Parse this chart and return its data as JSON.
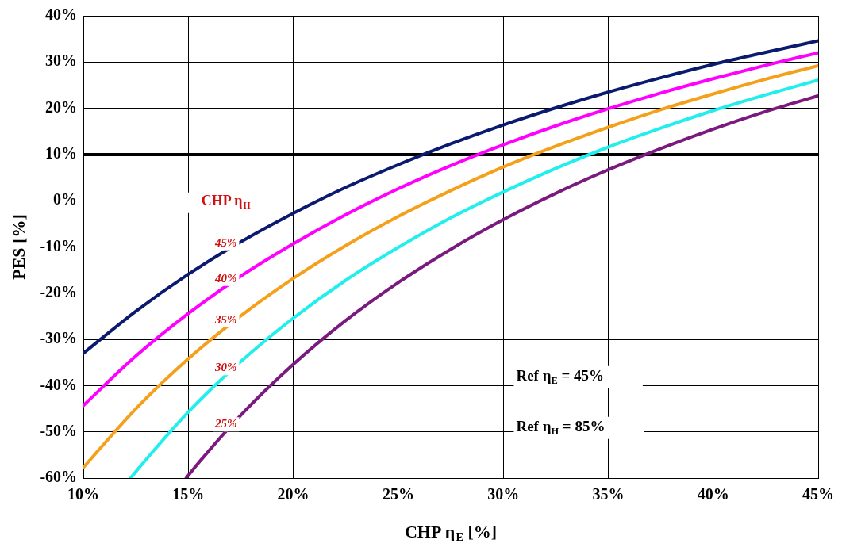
{
  "chart_data": {
    "type": "line",
    "xlabel": "CHP η$_{E}$ [%]",
    "ylabel": "PES [%]",
    "xlim": [
      10,
      45
    ],
    "xticks": [
      {
        "value": 10,
        "label": "10%"
      },
      {
        "value": 15,
        "label": "15%"
      },
      {
        "value": 20,
        "label": "20%"
      },
      {
        "value": 25,
        "label": "25%"
      },
      {
        "value": 30,
        "label": "30%"
      },
      {
        "value": 35,
        "label": "35%"
      },
      {
        "value": 40,
        "label": "40%"
      },
      {
        "value": 45,
        "label": "45%"
      }
    ],
    "ylim": [
      -60,
      40
    ],
    "yticks": [
      {
        "value": -60,
        "label": "-60%"
      },
      {
        "value": -50,
        "label": "-50%"
      },
      {
        "value": -40,
        "label": "-40%"
      },
      {
        "value": -30,
        "label": "-30%"
      },
      {
        "value": -20,
        "label": "-20%"
      },
      {
        "value": -10,
        "label": "-10%"
      },
      {
        "value": 0,
        "label": "0%"
      },
      {
        "value": 10,
        "label": "10%"
      },
      {
        "value": 20,
        "label": "20%"
      },
      {
        "value": 30,
        "label": "30%"
      },
      {
        "value": 40,
        "label": "40%"
      }
    ],
    "grid": true,
    "marker": "none",
    "line_style": "solid",
    "series": [
      {
        "name": "45%",
        "color": "#0a1a6e",
        "x": [
          10,
          12.5,
          15,
          17.5,
          20,
          22.5,
          25,
          27.5,
          30,
          32.5,
          35,
          37.5,
          40,
          42.5,
          45
        ],
        "values": [
          -33.0,
          -23.9,
          -15.9,
          -8.9,
          -2.7,
          2.9,
          7.8,
          12.3,
          16.4,
          20.1,
          23.5,
          26.6,
          29.5,
          32.1,
          34.6
        ]
      },
      {
        "name": "40%",
        "color": "#ff00ff",
        "x": [
          10,
          12.5,
          15,
          17.5,
          20,
          22.5,
          25,
          27.5,
          30,
          32.5,
          35,
          37.5,
          40,
          42.5,
          45
        ],
        "values": [
          -44.3,
          -33.6,
          -24.4,
          -16.3,
          -9.3,
          -3.0,
          2.6,
          7.6,
          12.1,
          16.2,
          19.9,
          23.3,
          26.4,
          29.3,
          32.0
        ]
      },
      {
        "name": "35%",
        "color": "#f5a01a",
        "x": [
          10,
          12.5,
          15,
          17.5,
          20,
          22.5,
          25,
          27.5,
          30,
          32.5,
          35,
          37.5,
          40,
          42.5,
          45
        ],
        "values": [
          -57.7,
          -45.0,
          -34.2,
          -24.9,
          -16.8,
          -9.7,
          -3.4,
          2.2,
          7.3,
          11.8,
          15.9,
          19.7,
          23.1,
          26.3,
          29.2
        ]
      },
      {
        "name": "30%",
        "color": "#22eeee",
        "x": [
          12.25,
          12.5,
          15,
          17.5,
          20,
          22.5,
          25,
          27.5,
          30,
          32.5,
          35,
          37.5,
          40,
          42.5,
          45
        ],
        "values": [
          -60.0,
          -58.6,
          -45.7,
          -34.8,
          -25.4,
          -17.2,
          -10.1,
          -3.7,
          1.9,
          7.0,
          11.6,
          15.7,
          19.5,
          22.9,
          26.1
        ]
      },
      {
        "name": "25%",
        "color": "#7b1a7e",
        "x": [
          14.9,
          15,
          17.5,
          20,
          22.5,
          25,
          27.5,
          30,
          32.5,
          35,
          37.5,
          40,
          42.5,
          45
        ],
        "values": [
          -60.0,
          -59.4,
          -46.4,
          -35.4,
          -25.9,
          -17.7,
          -10.5,
          -4.1,
          1.6,
          6.7,
          11.3,
          15.5,
          19.3,
          22.7
        ]
      }
    ],
    "ref_lines": [
      {
        "axis": "y",
        "value": 10,
        "color": "#000000"
      }
    ],
    "legend_title": "CHP η$_{H}$",
    "annotations": [
      "Ref η$_{E}$ = 45%",
      "Ref η$_{H}$ = 85%"
    ]
  }
}
